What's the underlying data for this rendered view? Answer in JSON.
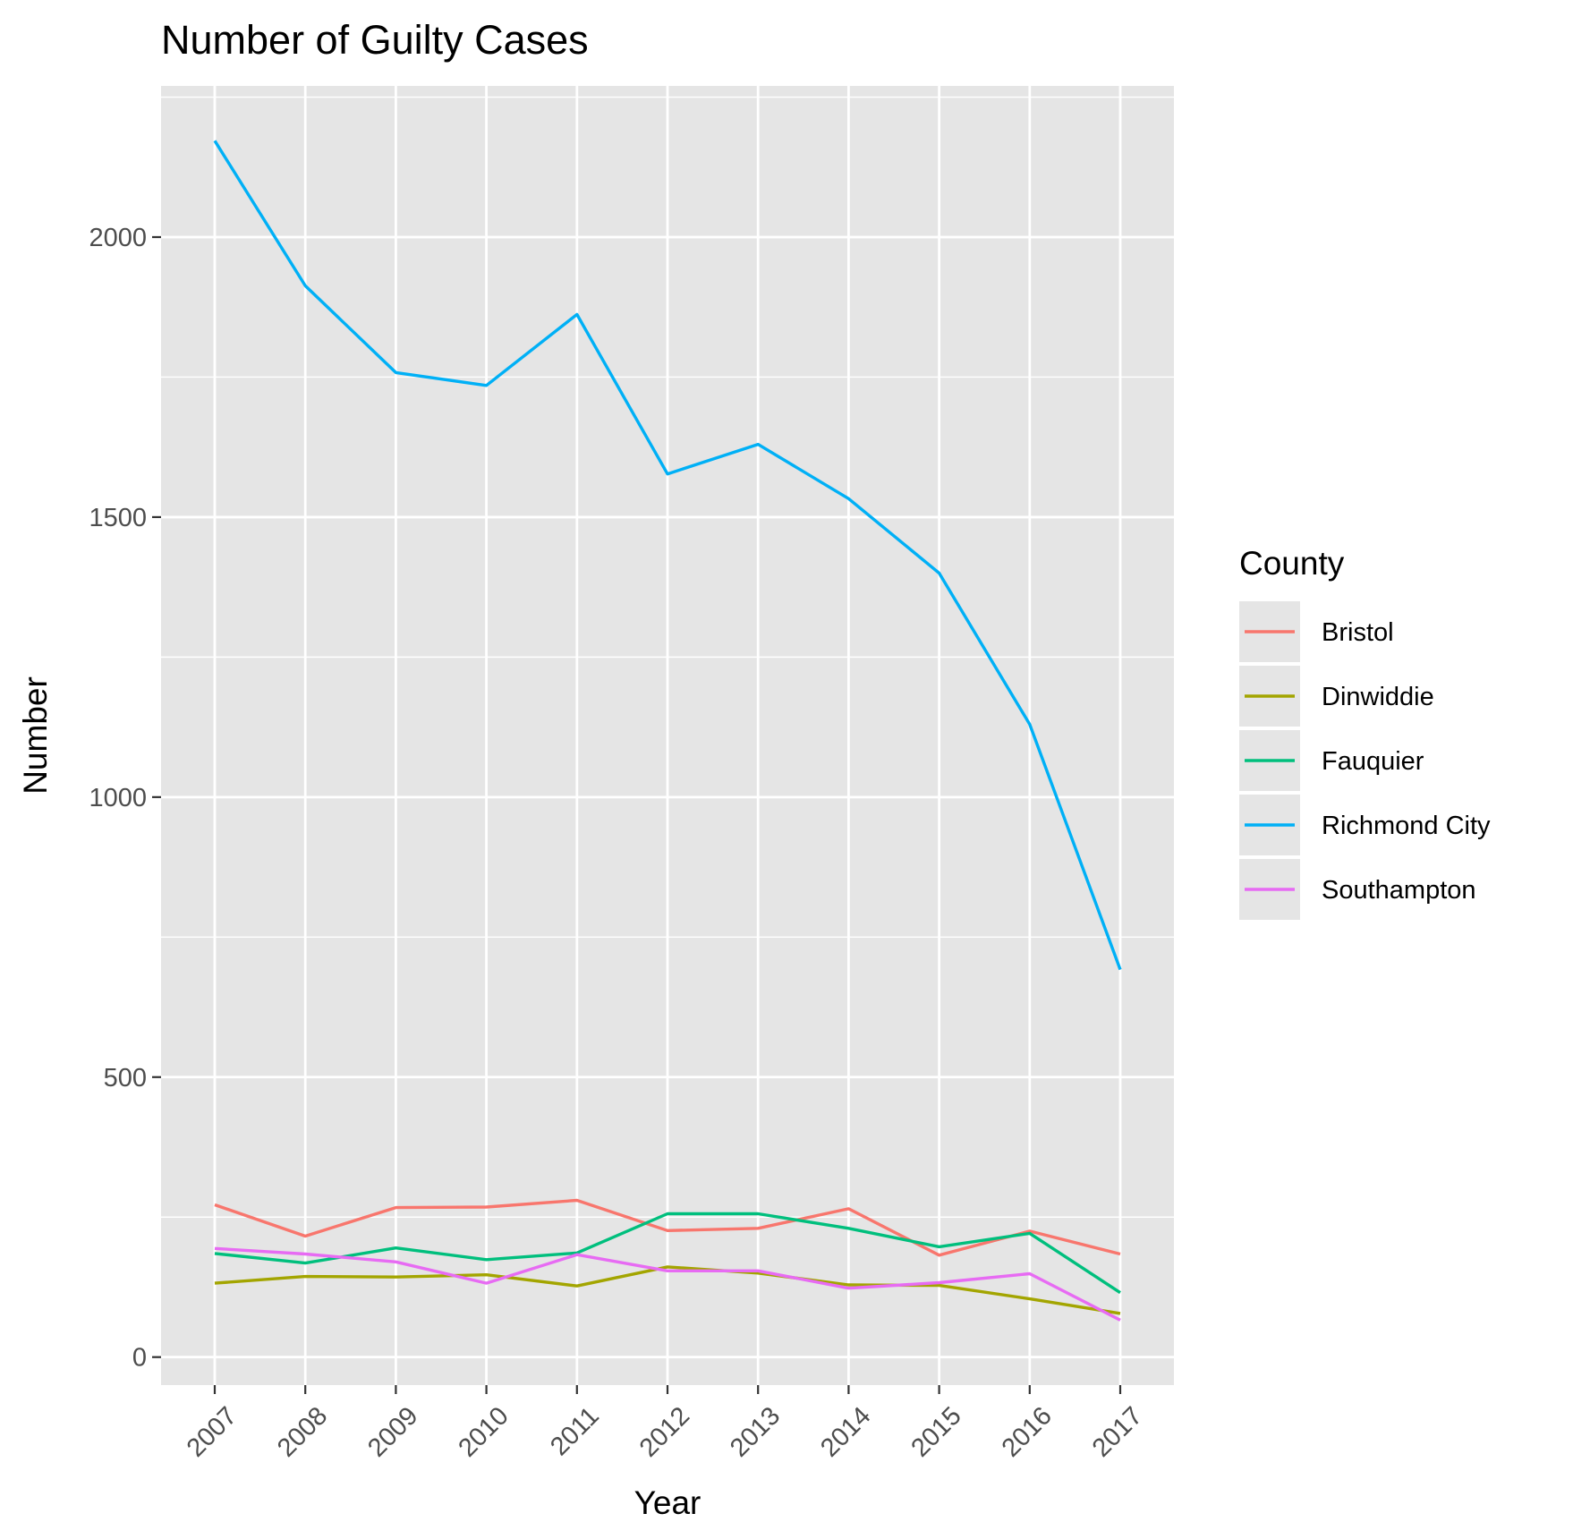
{
  "chart_data": {
    "type": "line",
    "title": "Number of Guilty Cases",
    "xlabel": "Year",
    "ylabel": "Number",
    "x": [
      "2007",
      "2008",
      "2009",
      "2010",
      "2011",
      "2012",
      "2013",
      "2014",
      "2015",
      "2016",
      "2017"
    ],
    "ylim": [
      -50,
      2270
    ],
    "yticks": [
      0,
      500,
      1000,
      1500,
      2000
    ],
    "ytick_labels": [
      "0",
      "500",
      "1000",
      "1500",
      "2000"
    ],
    "grid": true,
    "panel_background": "#e5e5e5",
    "legend": {
      "title": "County",
      "position": "right"
    },
    "series": [
      {
        "name": "Bristol",
        "color": "#F8766D",
        "values": [
          272,
          216,
          267,
          268,
          280,
          226,
          230,
          265,
          182,
          225,
          184
        ]
      },
      {
        "name": "Dinwiddie",
        "color": "#A3A500",
        "values": [
          132,
          144,
          143,
          147,
          127,
          161,
          150,
          129,
          128,
          104,
          78
        ]
      },
      {
        "name": "Fauquier",
        "color": "#00BF7D",
        "values": [
          185,
          168,
          195,
          174,
          186,
          256,
          256,
          230,
          197,
          221,
          115
        ]
      },
      {
        "name": "Richmond City",
        "color": "#00B0F6",
        "values": [
          2172,
          1913,
          1758,
          1735,
          1862,
          1577,
          1630,
          1533,
          1400,
          1130,
          692
        ]
      },
      {
        "name": "Southampton",
        "color": "#E76BF3",
        "values": [
          194,
          184,
          170,
          132,
          183,
          154,
          154,
          123,
          133,
          149,
          66
        ]
      }
    ]
  }
}
